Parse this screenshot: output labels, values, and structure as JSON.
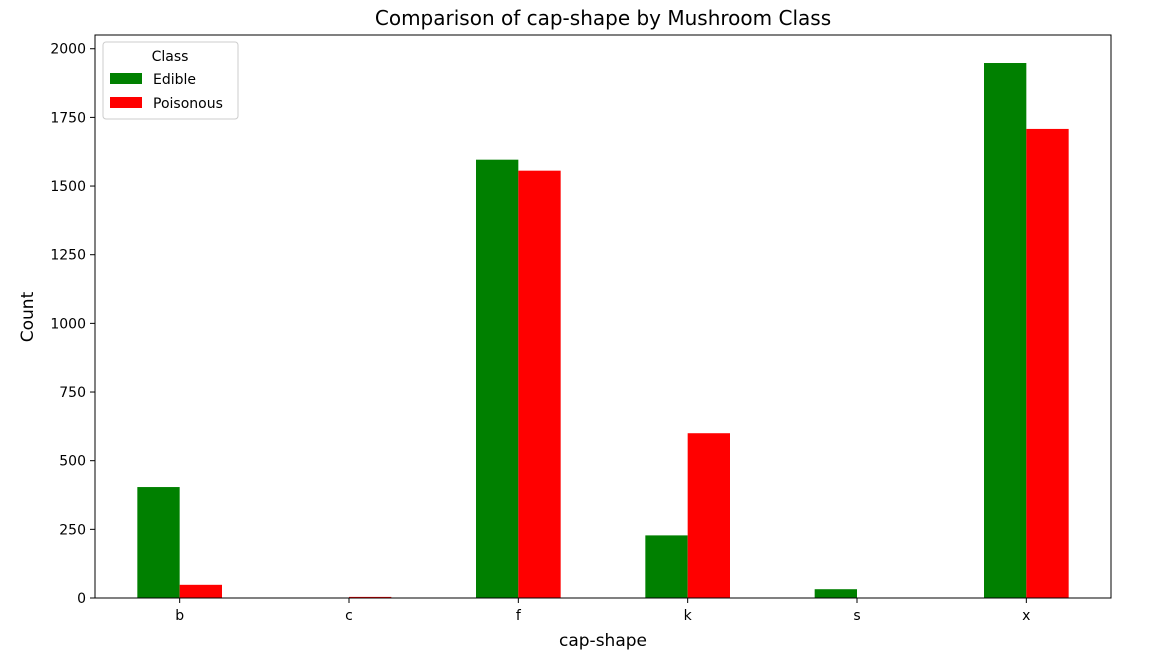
{
  "chart_data": {
    "type": "bar",
    "title": "Comparison of cap-shape by Mushroom Class",
    "xlabel": "cap-shape",
    "ylabel": "Count",
    "categories": [
      "b",
      "c",
      "f",
      "k",
      "s",
      "x"
    ],
    "series": [
      {
        "name": "Edible",
        "color": "#008000",
        "values": [
          404,
          0,
          1596,
          228,
          32,
          1948
        ]
      },
      {
        "name": "Poisonous",
        "color": "#ff0000",
        "values": [
          48,
          4,
          1556,
          600,
          0,
          1708
        ]
      }
    ],
    "ylim": [
      0,
      2050
    ],
    "yticks": [
      0,
      250,
      500,
      750,
      1000,
      1250,
      1500,
      1750,
      2000
    ],
    "grid": false,
    "legend": {
      "title": "Class",
      "placement": "top-left"
    }
  }
}
